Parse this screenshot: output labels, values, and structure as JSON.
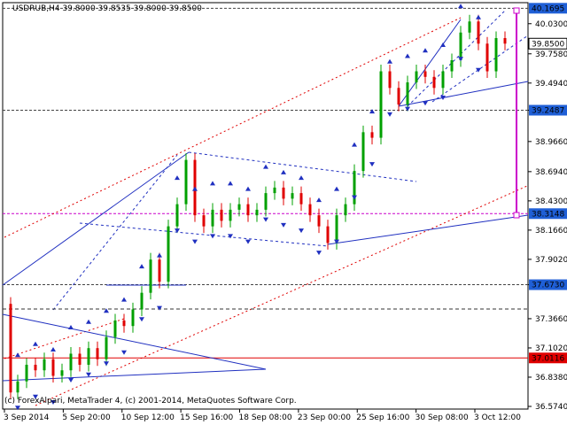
{
  "header": {
    "symbol_line": "USDRUB,H4  39.8000 39.8535 39.8000 39.8500"
  },
  "watermark": "(c) ForexAlpari, MetaTrader 4, (c) 2001-2014, MetaQuotes Software Corp.",
  "colors": {
    "bull": "#00a000",
    "bear": "#e00000",
    "trend": "#2030c0",
    "channel": "#e00000",
    "level": "#cc00cc",
    "label_bg": "#1f5fd6",
    "price_red": "#e00000",
    "price_black": "#000000"
  },
  "chart_data": {
    "type": "candlestick",
    "title": "USDRUB,H4",
    "ohlc_header": {
      "open": 39.8,
      "high": 39.8535,
      "low": 39.8,
      "close": 39.85
    },
    "x_ticks": [
      "3 Sep 2014",
      "5 Sep 20:00",
      "10 Sep 12:00",
      "15 Sep 16:00",
      "18 Sep 08:00",
      "23 Sep 00:00",
      "25 Sep 16:00",
      "30 Sep 08:00",
      "3 Oct 12:00"
    ],
    "y_ticks": [
      40.03,
      39.758,
      39.494,
      39.2487,
      38.966,
      38.694,
      38.43,
      38.166,
      37.902,
      37.673,
      37.366,
      37.102,
      36.838,
      36.574
    ],
    "ylim": [
      36.55,
      40.22
    ],
    "highlighted_levels": [
      {
        "label": "40.1695",
        "value": 40.1695,
        "style": "label-box"
      },
      {
        "label": "39.8500",
        "value": 39.85,
        "style": "current-price"
      },
      {
        "label": "39.2487",
        "value": 39.2487,
        "style": "label-box"
      },
      {
        "label": "38.3148",
        "value": 38.3148,
        "style": "label-box"
      },
      {
        "label": "37.6730",
        "value": 37.673,
        "style": "label-box"
      },
      {
        "label": "37.0116",
        "value": 37.0116,
        "style": "red-label-box"
      }
    ],
    "grid": false
  }
}
